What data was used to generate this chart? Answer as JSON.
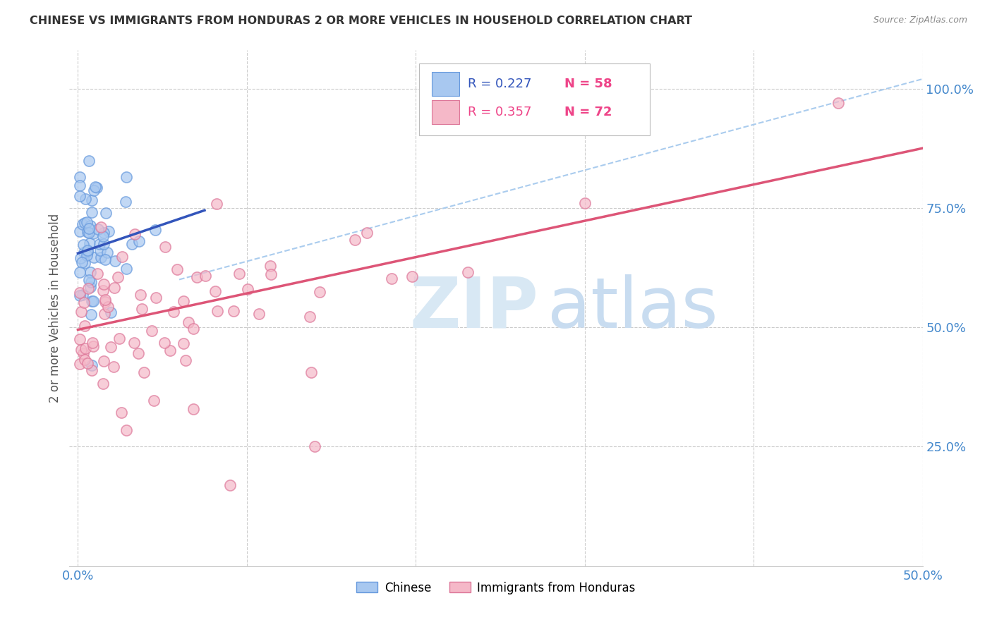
{
  "title": "CHINESE VS IMMIGRANTS FROM HONDURAS 2 OR MORE VEHICLES IN HOUSEHOLD CORRELATION CHART",
  "source": "Source: ZipAtlas.com",
  "ylabel": "2 or more Vehicles in Household",
  "xlim": [
    0.0,
    0.5
  ],
  "ylim": [
    0.0,
    1.08
  ],
  "yticks": [
    0.25,
    0.5,
    0.75,
    1.0
  ],
  "ytick_labels": [
    "25.0%",
    "50.0%",
    "75.0%",
    "100.0%"
  ],
  "xticks": [
    0.0,
    0.1,
    0.2,
    0.3,
    0.4,
    0.5
  ],
  "xtick_labels": [
    "0.0%",
    "",
    "",
    "",
    "",
    "50.0%"
  ],
  "color_chinese": "#A8C8F0",
  "color_chinese_edge": "#6699DD",
  "color_honduras": "#F5B8C8",
  "color_honduras_edge": "#DD7799",
  "color_line_chinese": "#3355BB",
  "color_line_honduras": "#DD5577",
  "color_line_dashed": "#AACCEE",
  "color_tick_labels": "#4488CC",
  "color_axis": "#CCCCCC",
  "watermark_color_zip": "#D8E8F4",
  "watermark_color_atlas": "#C8DCF0",
  "chinese_line_x0": 0.0,
  "chinese_line_y0": 0.655,
  "chinese_line_x1": 0.075,
  "chinese_line_y1": 0.745,
  "honduras_line_x0": 0.0,
  "honduras_line_y0": 0.495,
  "honduras_line_x1": 0.5,
  "honduras_line_y1": 0.875,
  "dashed_line_x0": 0.06,
  "dashed_line_y0": 0.6,
  "dashed_line_x1": 0.5,
  "dashed_line_y1": 1.02
}
